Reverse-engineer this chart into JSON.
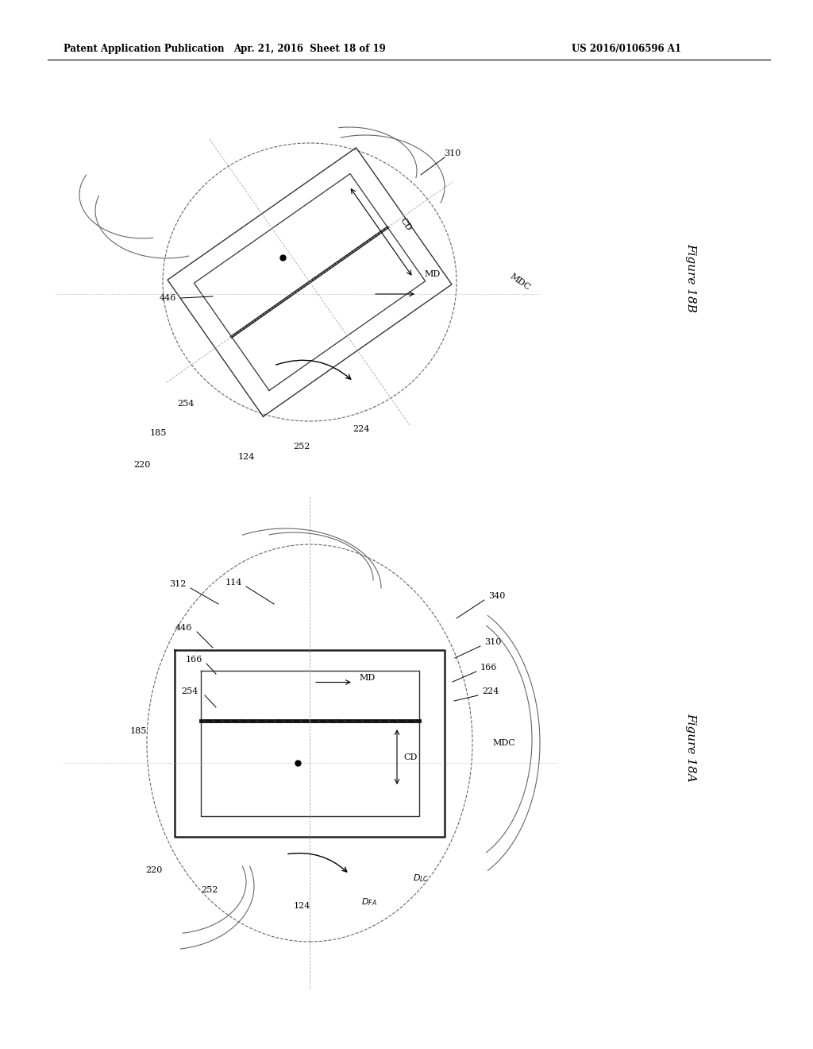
{
  "header_left": "Patent Application Publication",
  "header_mid": "Apr. 21, 2016  Sheet 18 of 19",
  "header_right": "US 2016/0106596 A1",
  "fig_label_A": "Figure 18A",
  "fig_label_B": "Figure 18B",
  "bg_color": "#ffffff",
  "line_color": "#000000",
  "gray_color": "#666666",
  "light_gray": "#aaaaaa"
}
